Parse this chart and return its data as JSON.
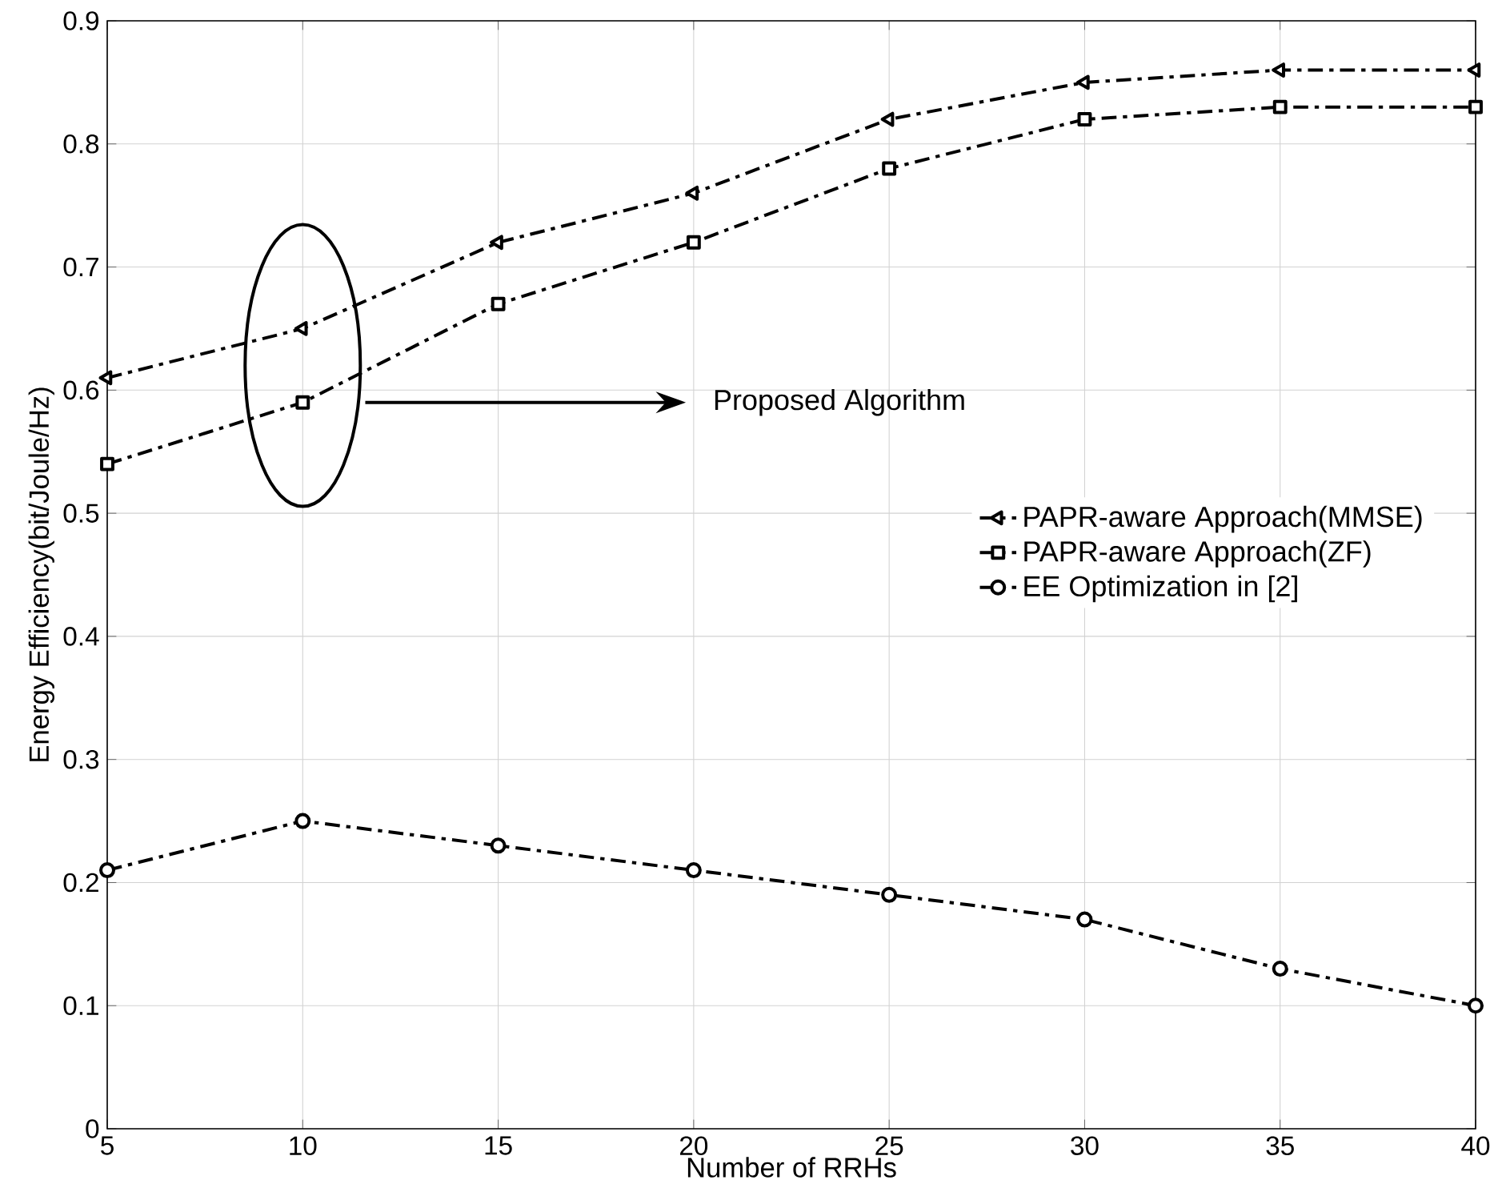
{
  "chart_data": {
    "type": "line",
    "xlabel": "Number of RRHs",
    "ylabel": "Energy Efficiency(bit/Joule/Hz)",
    "x": [
      5,
      10,
      15,
      20,
      25,
      30,
      35,
      40
    ],
    "series": [
      {
        "name": "PAPR-aware Approach(MMSE)",
        "color": "#000000",
        "marker": "triangle",
        "values": [
          0.61,
          0.65,
          0.72,
          0.76,
          0.82,
          0.85,
          0.86,
          0.86
        ]
      },
      {
        "name": "PAPR-aware Approach(ZF)",
        "color": "#000000",
        "marker": "square",
        "values": [
          0.54,
          0.59,
          0.67,
          0.72,
          0.78,
          0.82,
          0.83,
          0.83
        ]
      },
      {
        "name": "EE Optimization in [2]",
        "color": "#000000",
        "marker": "circle",
        "values": [
          0.21,
          0.25,
          0.23,
          0.21,
          0.19,
          0.17,
          0.13,
          0.1
        ]
      }
    ],
    "line_style": "dashdot",
    "xlim": [
      5,
      40
    ],
    "xticks": [
      5,
      10,
      15,
      20,
      25,
      30,
      35,
      40
    ],
    "ylim": [
      0,
      0.9
    ],
    "yticks": [
      0,
      0.1,
      0.2,
      0.3,
      0.4,
      0.5,
      0.6,
      0.7,
      0.8,
      0.9
    ],
    "grid": true,
    "legend": "right",
    "annotations": [
      "Proposed Algorithm"
    ]
  }
}
